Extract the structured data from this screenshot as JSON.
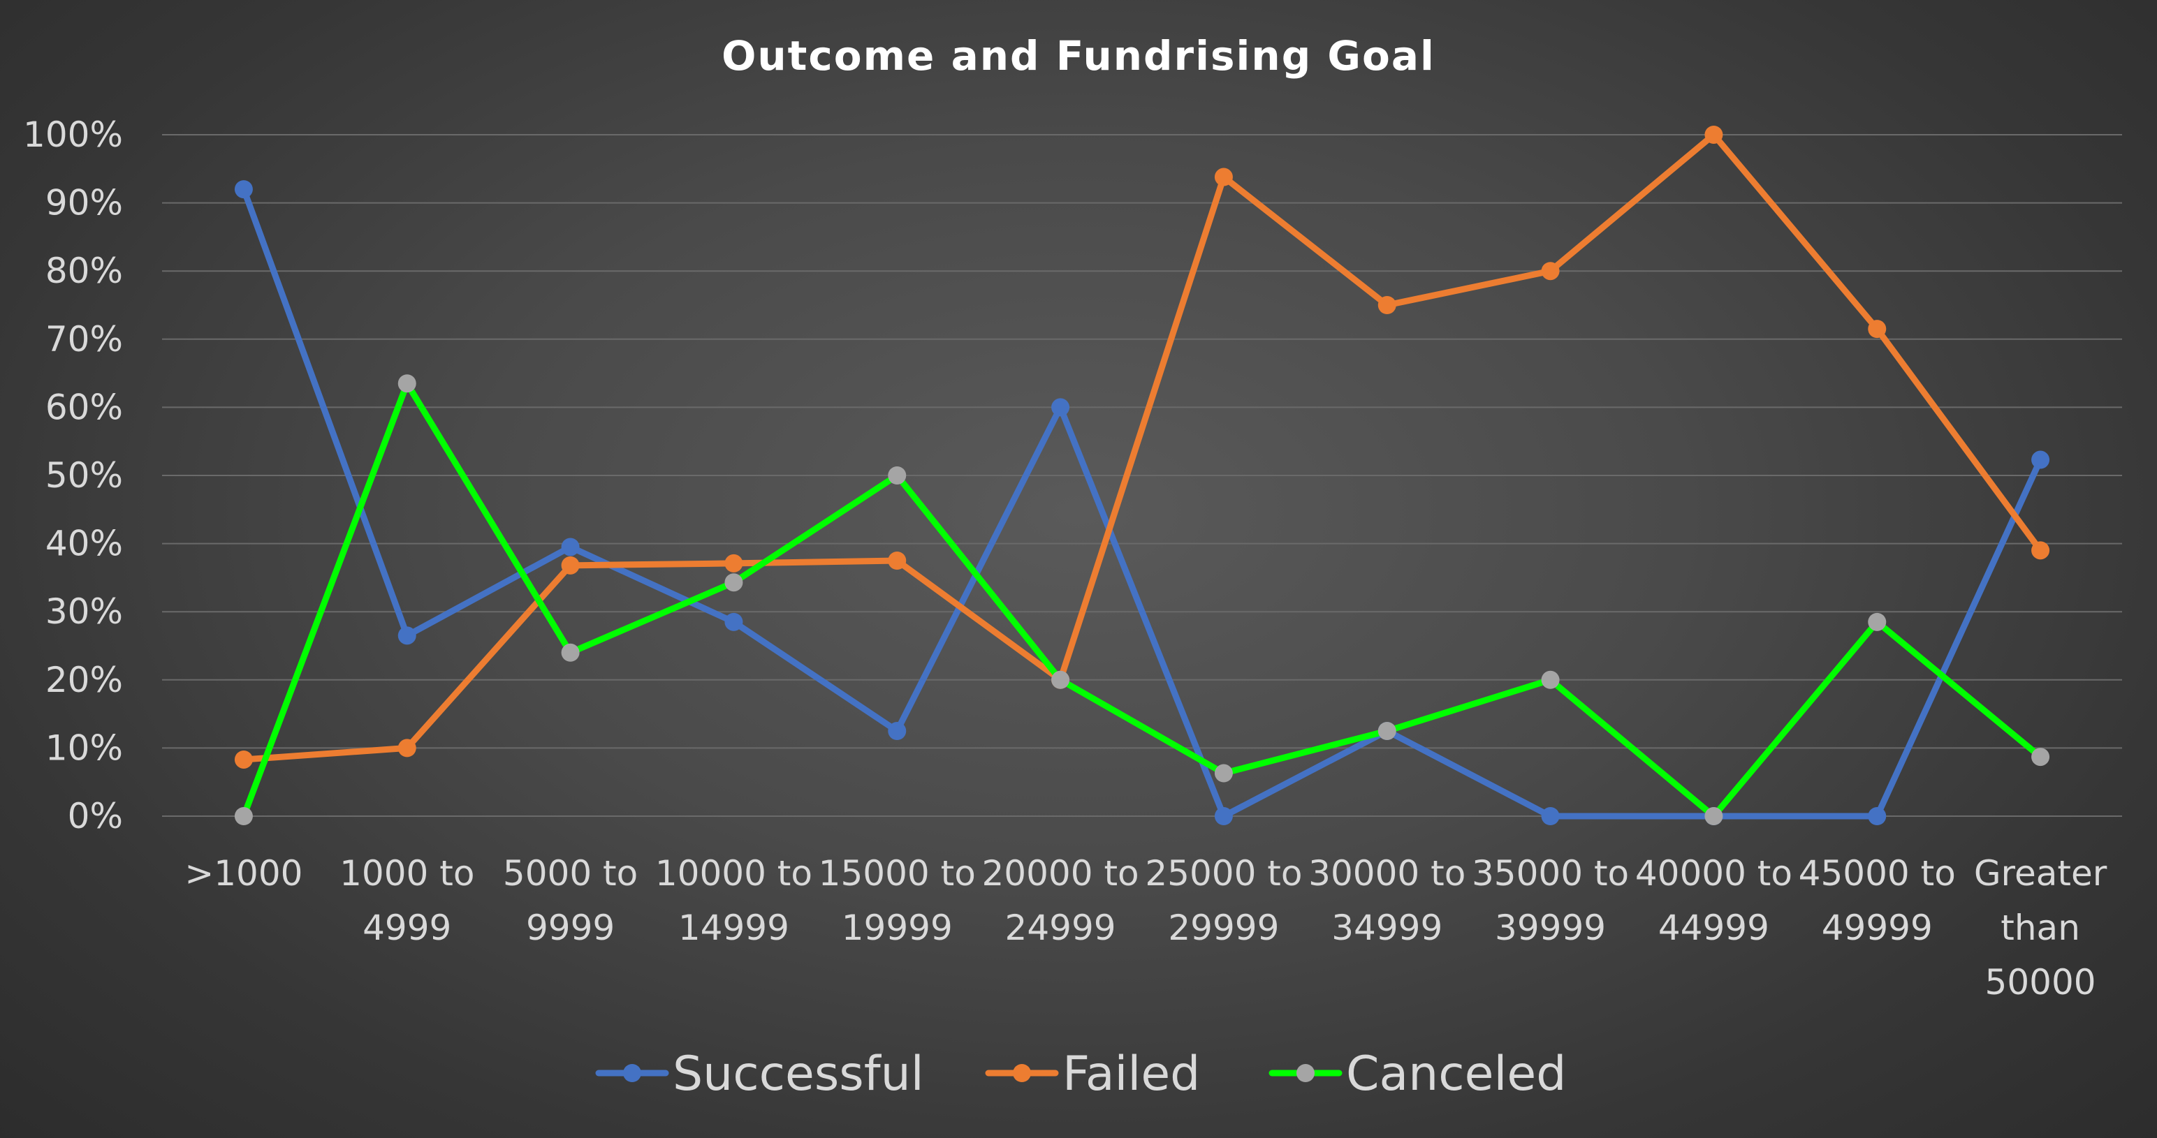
{
  "chart_data": {
    "type": "line",
    "title": "Outcome and Fundrising Goal",
    "xlabel": "",
    "ylabel": "",
    "ylim": [
      0,
      100
    ],
    "yticks": [
      "0%",
      "10%",
      "20%",
      "30%",
      "40%",
      "50%",
      "60%",
      "70%",
      "80%",
      "90%",
      "100%"
    ],
    "grid": true,
    "legend_position": "bottom",
    "categories": [
      ">1000",
      "1000 to 4999",
      "5000 to 9999",
      "10000 to 14999",
      "15000 to 19999",
      "20000 to 24999",
      "25000 to 29999",
      "30000 to 34999",
      "35000 to 39999",
      "40000 to 44999",
      "45000 to 49999",
      "Greater than 50000"
    ],
    "category_label_lines": [
      [
        ">1000"
      ],
      [
        "1000 to",
        "4999"
      ],
      [
        "5000 to",
        "9999"
      ],
      [
        "10000 to",
        "14999"
      ],
      [
        "15000 to",
        "19999"
      ],
      [
        "20000 to",
        "24999"
      ],
      [
        "25000 to",
        "29999"
      ],
      [
        "30000 to",
        "34999"
      ],
      [
        "35000 to",
        "39999"
      ],
      [
        "40000 to",
        "44999"
      ],
      [
        "45000 to",
        "49999"
      ],
      [
        "Greater",
        "than",
        "50000"
      ]
    ],
    "series": [
      {
        "name": "Successful",
        "color": "#4472C4",
        "marker_color": "#4472C4",
        "values": [
          92,
          26.5,
          39.5,
          28.5,
          12.5,
          60,
          0,
          12.5,
          0,
          0,
          0,
          52.3
        ]
      },
      {
        "name": "Failed",
        "color": "#ED7D31",
        "marker_color": "#ED7D31",
        "values": [
          8.3,
          10,
          36.8,
          37.1,
          37.5,
          20,
          93.8,
          75,
          80,
          100,
          71.5,
          39
        ]
      },
      {
        "name": "Canceled",
        "color": "#00FF00",
        "marker_color": "#A5A5A5",
        "values": [
          0,
          63.5,
          24,
          34.3,
          50,
          20,
          6.3,
          12.5,
          20,
          0,
          28.5,
          8.7
        ]
      }
    ]
  }
}
